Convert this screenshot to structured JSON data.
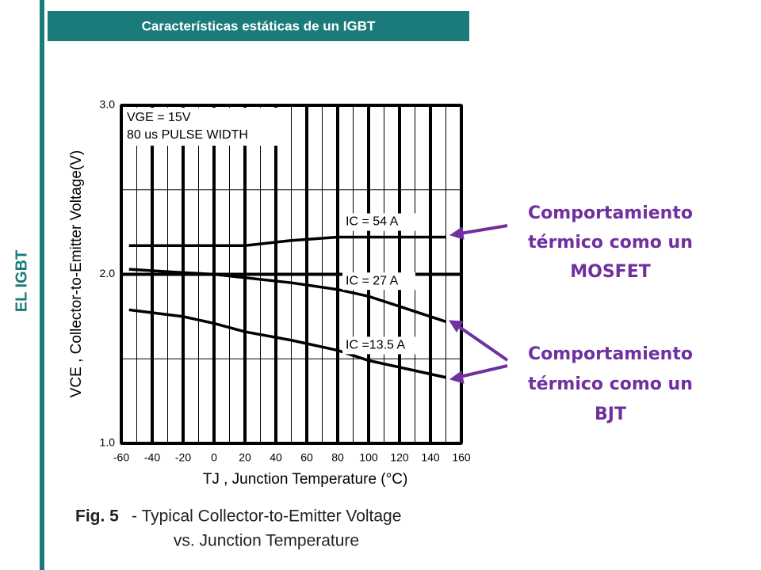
{
  "slide": {
    "header": "Características estáticas de un IGBT",
    "side_label": "EL IGBT",
    "note_mosfet": [
      "Comportamiento",
      "térmico como un",
      "MOSFET"
    ],
    "note_bjt": [
      "Comportamiento",
      "térmico como un",
      "BJT"
    ]
  },
  "chart_data": {
    "type": "line",
    "caption_label": "Fig. 5",
    "caption": [
      "- Typical Collector-to-Emitter  Voltage",
      "vs. Junction Temperature"
    ],
    "xlabel": "TJ , Junction Temperature (°C)",
    "ylabel": "VCE , Collector-to-Emitter Voltage(V)",
    "annotations": [
      "VGE = 15V",
      "80 us PULSE WIDTH"
    ],
    "x": [
      -55,
      -20,
      0,
      20,
      50,
      80,
      100,
      150
    ],
    "series": [
      {
        "name": "IC =  54 A",
        "color": "#000000",
        "values": [
          2.17,
          2.17,
          2.17,
          2.17,
          2.2,
          2.22,
          2.22,
          2.22
        ]
      },
      {
        "name": "IC =  27 A",
        "color": "#000000",
        "values": [
          2.03,
          2.01,
          2.0,
          1.98,
          1.95,
          1.91,
          1.87,
          1.72
        ]
      },
      {
        "name": "IC =13.5 A",
        "color": "#000000",
        "values": [
          1.79,
          1.75,
          1.71,
          1.66,
          1.61,
          1.55,
          1.49,
          1.39
        ]
      }
    ],
    "xlim": [
      -60,
      160
    ],
    "xticks": [
      -60,
      -40,
      -20,
      0,
      20,
      40,
      60,
      80,
      100,
      120,
      140,
      160
    ],
    "minor_xticks": [
      -50,
      -30,
      -10,
      10,
      30,
      50,
      70,
      90,
      110,
      130,
      150
    ],
    "ylim": [
      1,
      3
    ],
    "yticks": [
      {
        "value": 1,
        "label": "1.0"
      },
      {
        "value": 2,
        "label": "2.0"
      },
      {
        "value": 3,
        "label": "3.0"
      }
    ],
    "minor_yticks": [
      1.5,
      2.5
    ],
    "grid": true
  }
}
